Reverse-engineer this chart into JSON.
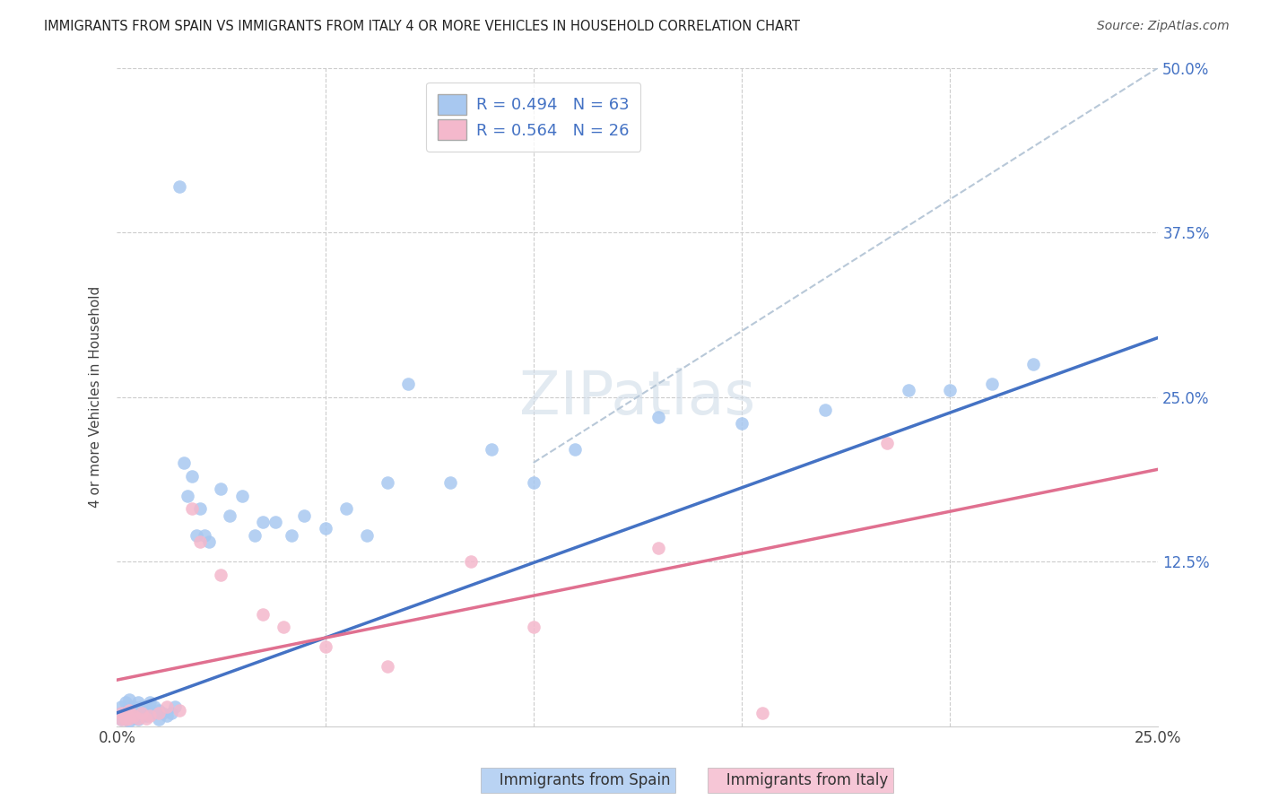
{
  "title": "IMMIGRANTS FROM SPAIN VS IMMIGRANTS FROM ITALY 4 OR MORE VEHICLES IN HOUSEHOLD CORRELATION CHART",
  "source": "Source: ZipAtlas.com",
  "ylabel": "4 or more Vehicles in Household",
  "xlim": [
    0.0,
    0.25
  ],
  "ylim": [
    0.0,
    0.5
  ],
  "xticks": [
    0.0,
    0.05,
    0.1,
    0.15,
    0.2,
    0.25
  ],
  "xticklabels": [
    "0.0%",
    "",
    "",
    "",
    "",
    "25.0%"
  ],
  "yticks": [
    0.0,
    0.125,
    0.25,
    0.375,
    0.5
  ],
  "yticklabels_right": [
    "",
    "12.5%",
    "25.0%",
    "37.5%",
    "50.0%"
  ],
  "spain_R": 0.494,
  "spain_N": 63,
  "italy_R": 0.564,
  "italy_N": 26,
  "spain_color": "#a8c8f0",
  "italy_color": "#f4b8cc",
  "spain_line_color": "#4472c4",
  "italy_line_color": "#e07090",
  "dashed_line_color": "#b8c8d8",
  "watermark_color": "#d0dce8",
  "legend_label_1": "Immigrants from Spain",
  "legend_label_2": "Immigrants from Italy",
  "spain_x": [
    0.001,
    0.001,
    0.001,
    0.002,
    0.002,
    0.002,
    0.002,
    0.003,
    0.003,
    0.003,
    0.003,
    0.004,
    0.004,
    0.004,
    0.005,
    0.005,
    0.005,
    0.006,
    0.006,
    0.007,
    0.007,
    0.008,
    0.008,
    0.009,
    0.009,
    0.01,
    0.01,
    0.011,
    0.012,
    0.013,
    0.014,
    0.015,
    0.016,
    0.017,
    0.018,
    0.019,
    0.02,
    0.021,
    0.022,
    0.025,
    0.027,
    0.03,
    0.033,
    0.035,
    0.038,
    0.042,
    0.045,
    0.05,
    0.055,
    0.06,
    0.065,
    0.07,
    0.08,
    0.09,
    0.1,
    0.11,
    0.13,
    0.15,
    0.17,
    0.19,
    0.2,
    0.21,
    0.22
  ],
  "spain_y": [
    0.005,
    0.01,
    0.015,
    0.005,
    0.008,
    0.012,
    0.018,
    0.004,
    0.008,
    0.012,
    0.02,
    0.006,
    0.01,
    0.015,
    0.005,
    0.01,
    0.018,
    0.008,
    0.015,
    0.008,
    0.015,
    0.01,
    0.018,
    0.01,
    0.015,
    0.005,
    0.012,
    0.01,
    0.008,
    0.01,
    0.015,
    0.41,
    0.2,
    0.175,
    0.19,
    0.145,
    0.165,
    0.145,
    0.14,
    0.18,
    0.16,
    0.175,
    0.145,
    0.155,
    0.155,
    0.145,
    0.16,
    0.15,
    0.165,
    0.145,
    0.185,
    0.26,
    0.185,
    0.21,
    0.185,
    0.21,
    0.235,
    0.23,
    0.24,
    0.255,
    0.255,
    0.26,
    0.275
  ],
  "italy_x": [
    0.001,
    0.001,
    0.002,
    0.002,
    0.003,
    0.003,
    0.004,
    0.005,
    0.006,
    0.007,
    0.008,
    0.01,
    0.012,
    0.015,
    0.018,
    0.02,
    0.025,
    0.035,
    0.04,
    0.05,
    0.065,
    0.085,
    0.1,
    0.13,
    0.155,
    0.185
  ],
  "italy_y": [
    0.005,
    0.01,
    0.005,
    0.01,
    0.006,
    0.012,
    0.008,
    0.006,
    0.01,
    0.006,
    0.008,
    0.01,
    0.015,
    0.012,
    0.165,
    0.14,
    0.115,
    0.085,
    0.075,
    0.06,
    0.045,
    0.125,
    0.075,
    0.135,
    0.01,
    0.215
  ],
  "spain_line": [
    0.0,
    0.25,
    0.01,
    0.295
  ],
  "italy_line": [
    0.0,
    0.25,
    0.035,
    0.195
  ],
  "dash_line": [
    0.1,
    0.25,
    0.2,
    0.5
  ]
}
